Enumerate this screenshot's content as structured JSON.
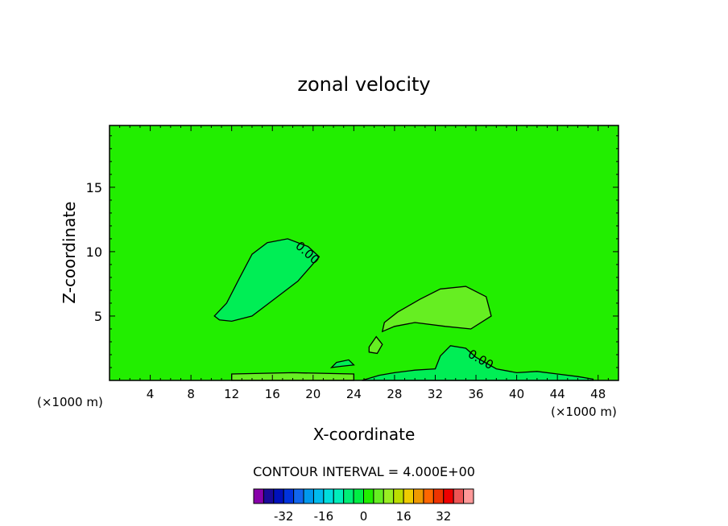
{
  "chart_data": {
    "type": "contour",
    "title": "zonal velocity",
    "xlabel": "X-coordinate",
    "ylabel": "Z-coordinate",
    "x_unit_label": "(×1000 m)",
    "z_unit_label": "(×1000 m)",
    "xlim": [
      0,
      50
    ],
    "ylim": [
      0,
      19.8
    ],
    "x_ticks": [
      4,
      8,
      12,
      16,
      20,
      24,
      28,
      32,
      36,
      40,
      44,
      48
    ],
    "y_ticks": [
      5,
      10,
      15
    ],
    "contour_label": "0.00",
    "contour_interval_text": "CONTOUR INTERVAL = 4.000E+00",
    "background_color": "#22ee00",
    "colorbar": {
      "levels": [
        -36,
        -32,
        -28,
        -24,
        -20,
        -16,
        -12,
        -8,
        -4,
        0,
        4,
        8,
        12,
        16,
        20,
        24,
        28,
        32,
        36
      ],
      "tick_labels": [
        "-32",
        "-16",
        "0",
        "16",
        "32"
      ],
      "tick_values": [
        -32,
        -16,
        0,
        16,
        32
      ],
      "colors": [
        "#8800aa",
        "#1a0a99",
        "#0011bb",
        "#0033dd",
        "#1166ee",
        "#0099ee",
        "#00bbee",
        "#00dddd",
        "#00eebb",
        "#00ee77",
        "#00ee44",
        "#22ee00",
        "#66ee22",
        "#99ee22",
        "#bbdd00",
        "#eecc00",
        "#ee9900",
        "#ff6600",
        "#ee3300",
        "#ee0000",
        "#ee5555",
        "#ff9999"
      ]
    },
    "regions": [
      {
        "value_range": "negative (0 to -4)",
        "color": "#00ee55",
        "x": [
          10.3,
          10.8,
          12.0,
          14.0,
          16.5,
          18.5,
          20.6,
          19.5,
          17.5,
          15.5,
          14.0,
          12.8,
          11.5,
          10.3
        ],
        "z": [
          5.0,
          4.7,
          4.6,
          5.0,
          6.5,
          7.7,
          9.6,
          10.4,
          11.0,
          10.7,
          9.8,
          8.0,
          6.0,
          5.0
        ]
      },
      {
        "value_range": "positive (0 to 4)",
        "color": "#66ee22",
        "x": [
          26.8,
          28.0,
          30.0,
          33.0,
          35.5,
          37.5,
          37.0,
          35.0,
          32.5,
          30.5,
          28.3,
          27.0,
          26.8
        ],
        "z": [
          3.8,
          4.2,
          4.5,
          4.2,
          4.0,
          5.0,
          6.5,
          7.3,
          7.1,
          6.3,
          5.3,
          4.5,
          3.8
        ]
      },
      {
        "value_range": "positive (0 to 4)",
        "color": "#66ee22",
        "x": [
          25.5,
          26.3,
          26.8,
          26.2,
          25.5
        ],
        "z": [
          2.2,
          2.1,
          2.8,
          3.4,
          2.6
        ]
      },
      {
        "value_range": "negative (0 to -4)",
        "color": "#00ee55",
        "x": [
          24.8,
          26.5,
          28.0,
          30.0,
          32.0,
          32.5,
          33.5,
          35.0,
          36.0,
          38.0,
          40.0,
          42.0,
          44.0,
          46.0,
          47.5,
          47.5,
          24.8
        ],
        "z": [
          0.0,
          0.4,
          0.6,
          0.8,
          0.9,
          1.9,
          2.7,
          2.5,
          1.8,
          0.9,
          0.6,
          0.7,
          0.5,
          0.3,
          0.1,
          0.0,
          0.0
        ]
      },
      {
        "value_range": "positive (0 to 4)",
        "color": "#66ee22",
        "x": [
          12.0,
          18.0,
          24.0,
          24.0,
          18.0,
          12.0
        ],
        "z": [
          0.0,
          0.0,
          0.0,
          0.5,
          0.6,
          0.5
        ]
      },
      {
        "value_range": "negative (0 to -4)",
        "color": "#00ee55",
        "x": [
          21.8,
          22.8,
          24.0,
          23.5,
          22.3,
          21.8
        ],
        "z": [
          1.0,
          1.1,
          1.2,
          1.6,
          1.4,
          1.0
        ]
      }
    ]
  }
}
